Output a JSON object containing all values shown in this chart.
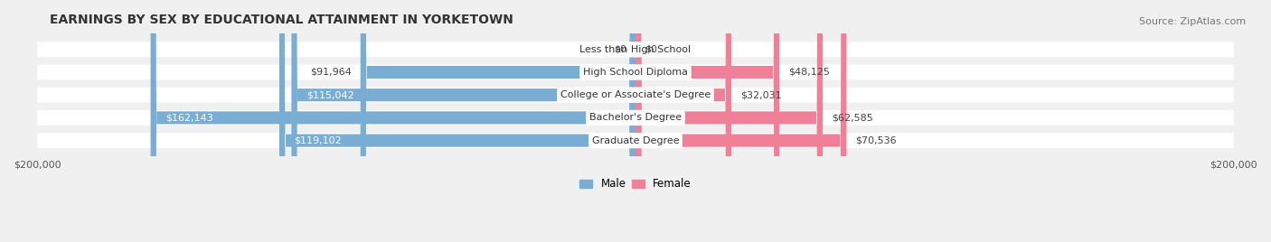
{
  "title": "EARNINGS BY SEX BY EDUCATIONAL ATTAINMENT IN YORKETOWN",
  "source": "Source: ZipAtlas.com",
  "categories": [
    "Less than High School",
    "High School Diploma",
    "College or Associate's Degree",
    "Bachelor's Degree",
    "Graduate Degree"
  ],
  "male_values": [
    0,
    91964,
    115042,
    162143,
    119102
  ],
  "female_values": [
    0,
    48125,
    32031,
    62585,
    70536
  ],
  "male_labels": [
    "$0",
    "$91,964",
    "$115,042",
    "$162,143",
    "$119,102"
  ],
  "female_labels": [
    "$0",
    "$48,125",
    "$32,031",
    "$62,585",
    "$70,536"
  ],
  "male_color": "#7aadd4",
  "female_color": "#f08098",
  "male_color_light": "#aac8e8",
  "female_color_light": "#f4aabf",
  "background_color": "#f0f0f0",
  "bar_background": "#e8e8e8",
  "max_value": 200000,
  "legend_male": "Male",
  "legend_female": "Female",
  "title_fontsize": 10,
  "source_fontsize": 8,
  "label_fontsize": 8.5,
  "axis_label_fontsize": 8
}
